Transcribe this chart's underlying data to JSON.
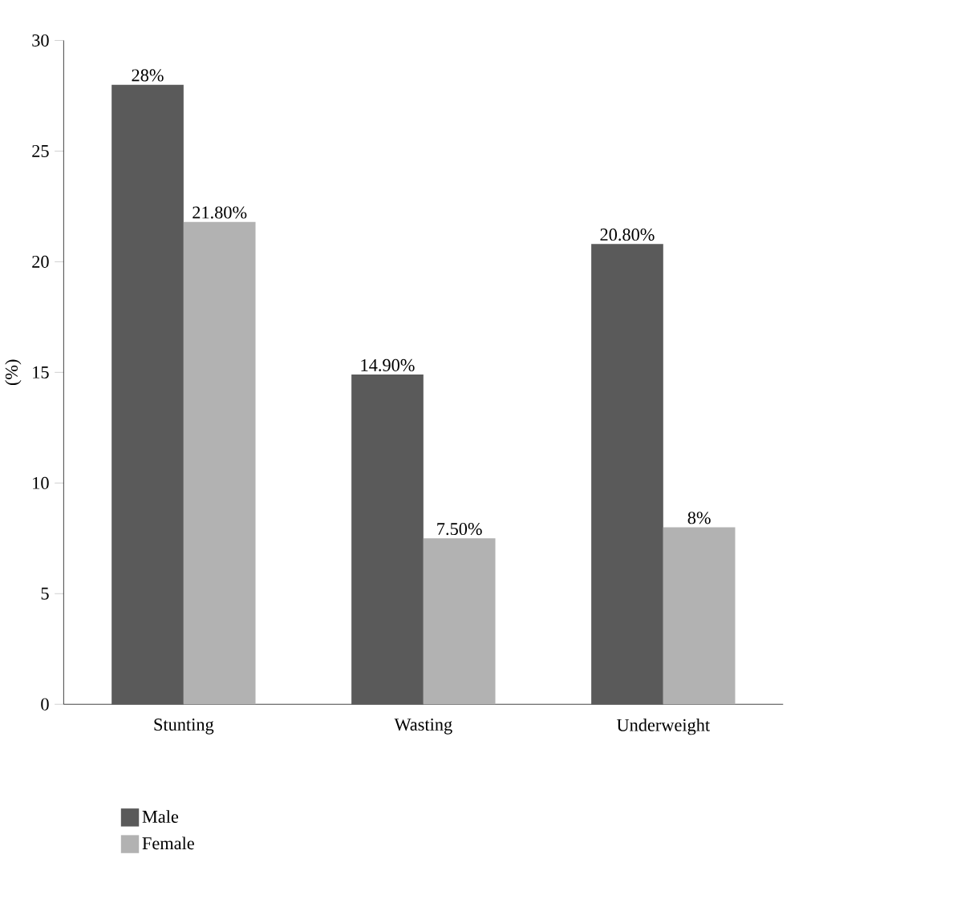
{
  "chart_data": {
    "type": "bar",
    "ylabel": "(%)",
    "categories": [
      "Stunting",
      "Wasting",
      "Underweight"
    ],
    "series": [
      {
        "name": "Male",
        "color": "#5a5a5a",
        "values": [
          28,
          14.9,
          20.8
        ],
        "value_labels": [
          "28%",
          "14.90%",
          "20.80%"
        ]
      },
      {
        "name": "Female",
        "color": "#b2b2b2",
        "values": [
          21.8,
          7.5,
          8
        ],
        "value_labels": [
          "21.80%",
          "7.50%",
          "8%"
        ]
      }
    ],
    "ylim": [
      0,
      30
    ],
    "yticks": [
      0,
      5,
      10,
      15,
      20,
      25,
      30
    ],
    "legend": "bottom left",
    "grid": false
  }
}
